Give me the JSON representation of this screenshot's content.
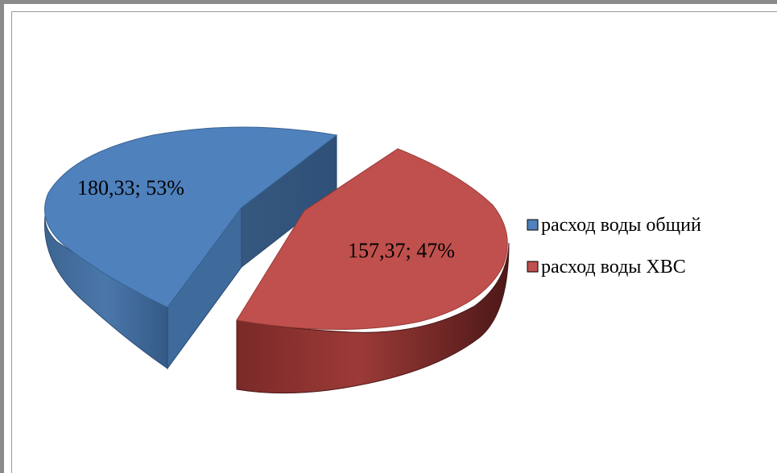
{
  "chart_data": {
    "type": "pie",
    "style": "3d-exploded",
    "slices": [
      {
        "name": "расход воды общий",
        "value": 180.33,
        "percent": 53,
        "label": "180,33; 53%",
        "color": "#4f81bd"
      },
      {
        "name": "расход воды ХВС",
        "value": 157.37,
        "percent": 47,
        "label": "157,37; 47%",
        "color": "#c0504d"
      }
    ],
    "legend": {
      "placement": "right",
      "entries": [
        "расход воды общий",
        "расход воды ХВС"
      ]
    }
  }
}
